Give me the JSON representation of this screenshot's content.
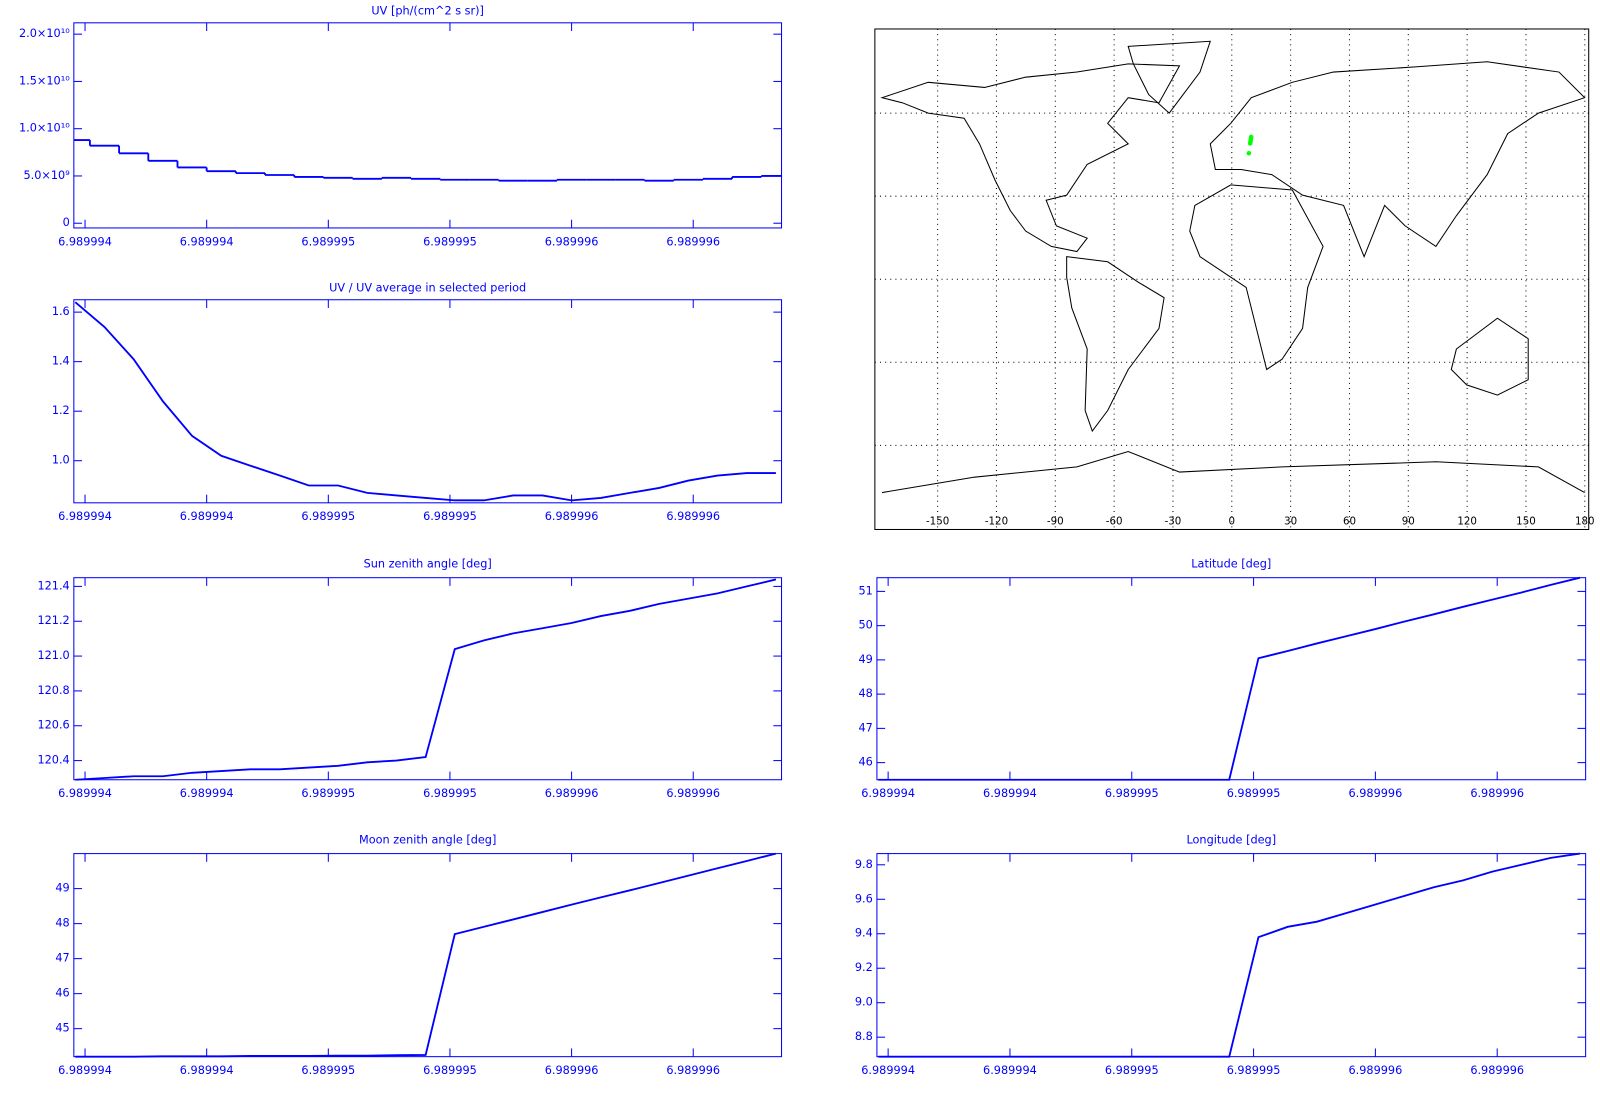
{
  "chart_data": [
    {
      "type": "line",
      "drawstyle": "steps-mid",
      "title": "UV [ph/(cm^2 s sr)]",
      "color": "#0000ff",
      "x": [
        6.98999396,
        6.98999408,
        6.9899942,
        6.98999432,
        6.98999444,
        6.98999456,
        6.98999468,
        6.9899948,
        6.98999492,
        6.98999504,
        6.98999516,
        6.98999528,
        6.9899954,
        6.98999552,
        6.98999564,
        6.98999576,
        6.98999588,
        6.989996,
        6.98999612,
        6.98999624,
        6.98999636,
        6.98999648,
        6.9899966,
        6.98999672,
        6.98999684
      ],
      "values": [
        8800000000.0,
        8200000000.0,
        7400000000.0,
        6600000000.0,
        5900000000.0,
        5500000000.0,
        5300000000.0,
        5100000000.0,
        4900000000.0,
        4800000000.0,
        4700000000.0,
        4800000000.0,
        4700000000.0,
        4600000000.0,
        4600000000.0,
        4500000000.0,
        4500000000.0,
        4600000000.0,
        4600000000.0,
        4600000000.0,
        4500000000.0,
        4600000000.0,
        4700000000.0,
        4900000000.0,
        5000000000.0
      ],
      "xlim": [
        6.989993954,
        6.989996863
      ],
      "xticks": [
        {
          "value": 6.989994,
          "label": "6.989994"
        },
        {
          "value": 6.9899945,
          "label": "6.989994"
        },
        {
          "value": 6.989995,
          "label": "6.989995"
        },
        {
          "value": 6.9899955,
          "label": "6.989995"
        },
        {
          "value": 6.989996,
          "label": "6.989996"
        },
        {
          "value": 6.9899965,
          "label": "6.989996"
        }
      ],
      "ylim": [
        -500000000.0,
        21200000000.0
      ],
      "yticks": [
        0,
        {
          "value": 5000000000.0,
          "label": "5.0×10⁹"
        },
        {
          "value": 10000000000.0,
          "label": "1.0×10¹⁰"
        },
        {
          "value": 15000000000.0,
          "label": "1.5×10¹⁰"
        },
        {
          "value": 20000000000.0,
          "label": "2.0×10¹⁰"
        }
      ]
    },
    {
      "type": "line",
      "title": "UV / UV average in selected period",
      "color": "#0000ff",
      "x": [
        6.98999396,
        6.98999408,
        6.9899942,
        6.98999432,
        6.98999444,
        6.98999456,
        6.98999468,
        6.9899948,
        6.98999492,
        6.98999504,
        6.98999516,
        6.98999528,
        6.9899954,
        6.98999552,
        6.98999564,
        6.98999576,
        6.98999588,
        6.989996,
        6.98999612,
        6.98999624,
        6.98999636,
        6.98999648,
        6.9899966,
        6.98999672,
        6.98999684
      ],
      "values": [
        1.64,
        1.54,
        1.41,
        1.24,
        1.1,
        1.02,
        0.98,
        0.94,
        0.9,
        0.9,
        0.87,
        0.86,
        0.85,
        0.84,
        0.84,
        0.86,
        0.86,
        0.84,
        0.85,
        0.87,
        0.89,
        0.92,
        0.94,
        0.95,
        0.95
      ],
      "xlim": [
        6.989993954,
        6.989996863
      ],
      "xticks": [
        {
          "value": 6.989994,
          "label": "6.989994"
        },
        {
          "value": 6.9899945,
          "label": "6.989994"
        },
        {
          "value": 6.989995,
          "label": "6.989995"
        },
        {
          "value": 6.9899955,
          "label": "6.989995"
        },
        {
          "value": 6.989996,
          "label": "6.989996"
        },
        {
          "value": 6.9899965,
          "label": "6.989996"
        }
      ],
      "ylim": [
        0.83,
        1.65
      ],
      "yticks": [
        {
          "value": 1,
          "label": "1.0"
        },
        1.2,
        1.4,
        1.6
      ]
    },
    {
      "type": "map",
      "color": "#00ff00",
      "x": [
        8.69,
        9.38,
        9.52,
        9.67,
        9.8,
        9.865
      ],
      "values": [
        45.5,
        49.05,
        49.69,
        50.33,
        50.97,
        51.4
      ],
      "xlim": [
        -182,
        182
      ],
      "xticks": [
        -150,
        -120,
        -90,
        -60,
        -30,
        0,
        30,
        60,
        90,
        120,
        150,
        180
      ],
      "ylim": [
        -90.4,
        90.4
      ],
      "yticks": [
        -60,
        -30,
        0,
        30,
        60
      ],
      "grid": true
    },
    {
      "type": "line",
      "title": "Sun zenith angle [deg]",
      "color": "#0000ff",
      "x": [
        6.98999396,
        6.98999408,
        6.9899942,
        6.98999432,
        6.98999444,
        6.98999456,
        6.98999468,
        6.9899948,
        6.98999492,
        6.98999504,
        6.98999516,
        6.98999528,
        6.9899954,
        6.98999552,
        6.98999564,
        6.98999576,
        6.98999588,
        6.989996,
        6.98999612,
        6.98999624,
        6.98999636,
        6.98999648,
        6.9899966,
        6.98999672,
        6.98999684
      ],
      "values": [
        120.29,
        120.3,
        120.31,
        120.31,
        120.33,
        120.34,
        120.35,
        120.35,
        120.36,
        120.37,
        120.39,
        120.4,
        120.42,
        121.04,
        121.09,
        121.13,
        121.16,
        121.19,
        121.23,
        121.26,
        121.3,
        121.33,
        121.36,
        121.4,
        121.44
      ],
      "xlim": [
        6.989993954,
        6.989996863
      ],
      "xticks": [
        {
          "value": 6.989994,
          "label": "6.989994"
        },
        {
          "value": 6.9899945,
          "label": "6.989994"
        },
        {
          "value": 6.989995,
          "label": "6.989995"
        },
        {
          "value": 6.9899955,
          "label": "6.989995"
        },
        {
          "value": 6.989996,
          "label": "6.989996"
        },
        {
          "value": 6.9899965,
          "label": "6.989996"
        }
      ],
      "ylim": [
        120.29,
        121.45
      ],
      "yticks": [
        120.4,
        120.6,
        120.8,
        {
          "value": 121,
          "label": "121.0"
        },
        121.2,
        121.4
      ]
    },
    {
      "type": "line",
      "title": "Latitude [deg]",
      "color": "#0000ff",
      "x": [
        6.98999396,
        6.98999408,
        6.9899942,
        6.98999432,
        6.98999444,
        6.98999456,
        6.98999468,
        6.9899948,
        6.98999492,
        6.98999504,
        6.98999516,
        6.98999528,
        6.9899954,
        6.98999552,
        6.98999564,
        6.98999576,
        6.98999588,
        6.989996,
        6.98999612,
        6.98999624,
        6.98999636,
        6.98999648,
        6.9899966,
        6.98999672,
        6.98999684
      ],
      "values": [
        45.5,
        45.5,
        45.5,
        45.5,
        45.5,
        45.5,
        45.5,
        45.5,
        45.5,
        45.5,
        45.5,
        45.5,
        45.5,
        49.05,
        49.26,
        49.48,
        49.69,
        49.9,
        50.12,
        50.33,
        50.55,
        50.76,
        50.97,
        51.19,
        51.4
      ],
      "xlim": [
        6.989993954,
        6.989996863
      ],
      "xticks": [
        {
          "value": 6.989994,
          "label": "6.989994"
        },
        {
          "value": 6.9899945,
          "label": "6.989994"
        },
        {
          "value": 6.989995,
          "label": "6.989995"
        },
        {
          "value": 6.9899955,
          "label": "6.989995"
        },
        {
          "value": 6.989996,
          "label": "6.989996"
        },
        {
          "value": 6.9899965,
          "label": "6.989996"
        }
      ],
      "ylim": [
        45.5,
        51.4
      ],
      "yticks": [
        46,
        47,
        48,
        49,
        50,
        51
      ]
    },
    {
      "type": "line",
      "title": "Moon zenith angle [deg]",
      "color": "#0000ff",
      "x": [
        6.98999396,
        6.98999408,
        6.9899942,
        6.98999432,
        6.98999444,
        6.98999456,
        6.98999468,
        6.9899948,
        6.98999492,
        6.98999504,
        6.98999516,
        6.98999528,
        6.9899954,
        6.98999552,
        6.98999564,
        6.98999576,
        6.98999588,
        6.989996,
        6.98999612,
        6.98999624,
        6.98999636,
        6.98999648,
        6.9899966,
        6.98999672,
        6.98999684
      ],
      "values": [
        44.2,
        44.2,
        44.2,
        44.21,
        44.21,
        44.21,
        44.22,
        44.22,
        44.22,
        44.23,
        44.23,
        44.24,
        44.25,
        47.7,
        47.91,
        48.12,
        48.33,
        48.54,
        48.75,
        48.95,
        49.16,
        49.37,
        49.58,
        49.79,
        50.0
      ],
      "xlim": [
        6.989993954,
        6.989996863
      ],
      "xticks": [
        {
          "value": 6.989994,
          "label": "6.989994"
        },
        {
          "value": 6.9899945,
          "label": "6.989994"
        },
        {
          "value": 6.989995,
          "label": "6.989995"
        },
        {
          "value": 6.9899955,
          "label": "6.989995"
        },
        {
          "value": 6.989996,
          "label": "6.989996"
        },
        {
          "value": 6.9899965,
          "label": "6.989996"
        }
      ],
      "ylim": [
        44.2,
        50.0
      ],
      "yticks": [
        45,
        46,
        47,
        48,
        49
      ]
    },
    {
      "type": "line",
      "title": "Longitude [deg]",
      "color": "#0000ff",
      "x": [
        6.98999396,
        6.98999408,
        6.9899942,
        6.98999432,
        6.98999444,
        6.98999456,
        6.98999468,
        6.9899948,
        6.98999492,
        6.98999504,
        6.98999516,
        6.98999528,
        6.9899954,
        6.98999552,
        6.98999564,
        6.98999576,
        6.98999588,
        6.989996,
        6.98999612,
        6.98999624,
        6.98999636,
        6.98999648,
        6.9899966,
        6.98999672,
        6.98999684
      ],
      "values": [
        8.687,
        8.687,
        8.687,
        8.687,
        8.687,
        8.687,
        8.687,
        8.687,
        8.687,
        8.687,
        8.687,
        8.687,
        8.687,
        9.38,
        9.44,
        9.47,
        9.52,
        9.57,
        9.62,
        9.67,
        9.71,
        9.76,
        9.8,
        9.84,
        9.865
      ],
      "xlim": [
        6.989993954,
        6.989996863
      ],
      "xticks": [
        {
          "value": 6.989994,
          "label": "6.989994"
        },
        {
          "value": 6.9899945,
          "label": "6.989994"
        },
        {
          "value": 6.989995,
          "label": "6.989995"
        },
        {
          "value": 6.9899955,
          "label": "6.989995"
        },
        {
          "value": 6.989996,
          "label": "6.989996"
        },
        {
          "value": 6.9899965,
          "label": "6.989996"
        }
      ],
      "ylim": [
        8.687,
        9.865
      ],
      "yticks": [
        8.8,
        {
          "value": 9,
          "label": "9.0"
        },
        9.2,
        9.4,
        9.6,
        9.8
      ]
    }
  ]
}
